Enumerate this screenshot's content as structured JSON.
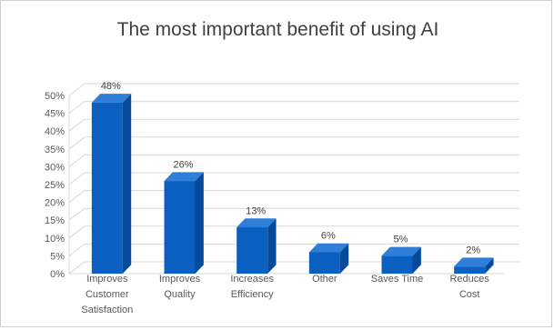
{
  "chart_data": {
    "type": "bar",
    "title": "The most important benefit of using AI",
    "xlabel": "",
    "ylabel": "",
    "categories": [
      [
        "Improves",
        "Customer",
        "Satisfaction"
      ],
      [
        "Improves",
        "Quality"
      ],
      [
        "Increases",
        "Efficiency"
      ],
      [
        "Other"
      ],
      [
        "Saves Time"
      ],
      [
        "Reduces",
        "Cost"
      ]
    ],
    "values": [
      48,
      26,
      13,
      6,
      5,
      2
    ],
    "data_labels": [
      "48%",
      "26%",
      "13%",
      "6%",
      "5%",
      "2%"
    ],
    "ylim": [
      0,
      50
    ],
    "yticks": [
      0,
      5,
      10,
      15,
      20,
      25,
      30,
      35,
      40,
      45,
      50
    ],
    "ytick_labels": [
      "0%",
      "5%",
      "10%",
      "15%",
      "20%",
      "25%",
      "30%",
      "35%",
      "40%",
      "45%",
      "50%"
    ],
    "grid": true,
    "legend": false,
    "bar_style": "3d-column",
    "colors": {
      "bar_front": "#0a5fc0",
      "bar_top": "#2f7fd8",
      "bar_side": "#064a99",
      "grid": "#d9d9d9",
      "wall": "#ffffff"
    }
  }
}
